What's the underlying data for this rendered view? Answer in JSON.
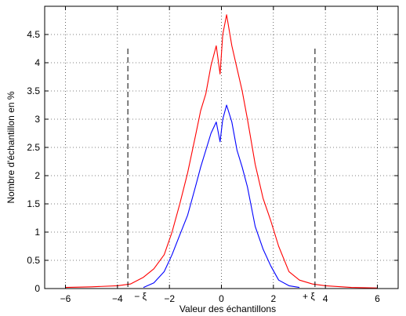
{
  "chart_data": {
    "type": "line",
    "title": "",
    "xlabel": "Valeur des échantillons",
    "ylabel": "Nombre d'échantillon en %",
    "xlim": [
      -6.8,
      6.8
    ],
    "ylim": [
      0,
      5
    ],
    "grid": true,
    "legend": "none",
    "xticks": [
      -6,
      -4,
      -2,
      0,
      2,
      4,
      6
    ],
    "yticks": [
      0,
      0.5,
      1,
      1.5,
      2,
      2.5,
      3,
      3.5,
      4,
      4.5
    ],
    "thresholds": [
      {
        "x": -3.6,
        "label": "− ξ",
        "y_top": 4.25
      },
      {
        "x": 3.6,
        "label": "+ ξ",
        "y_top": 4.25
      }
    ],
    "series": [
      {
        "color": "#ff0000",
        "x": [
          -6.0,
          -5.0,
          -4.0,
          -3.5,
          -3.0,
          -2.6,
          -2.2,
          -1.9,
          -1.6,
          -1.3,
          -1.0,
          -0.8,
          -0.6,
          -0.4,
          -0.2,
          -0.05,
          0.05,
          0.2,
          0.4,
          0.6,
          0.8,
          1.0,
          1.3,
          1.6,
          1.9,
          2.2,
          2.6,
          3.0,
          3.5,
          4.0,
          5.0,
          6.0
        ],
        "y": [
          0.02,
          0.03,
          0.05,
          0.08,
          0.2,
          0.35,
          0.6,
          1.0,
          1.5,
          2.05,
          2.7,
          3.15,
          3.45,
          3.95,
          4.3,
          3.8,
          4.5,
          4.85,
          4.3,
          3.9,
          3.5,
          3.0,
          2.2,
          1.6,
          1.2,
          0.75,
          0.3,
          0.15,
          0.08,
          0.05,
          0.02,
          0.01
        ],
        "visible_y": [
          0.02,
          0.03,
          0.05,
          0.08,
          0.2,
          0.35,
          0.6,
          1.0,
          1.5,
          2.05,
          2.7,
          3.15,
          3.45,
          3.95,
          4.3,
          3.8,
          4.5,
          4.85,
          4.3,
          3.9,
          3.5,
          3.0,
          2.2,
          1.6,
          1.2,
          0.75,
          0.3,
          0.15,
          0.08,
          0.05,
          0.02,
          0.01
        ]
      },
      {
        "color": "#0000ff",
        "x": [
          -3.0,
          -2.6,
          -2.2,
          -1.9,
          -1.6,
          -1.3,
          -1.0,
          -0.8,
          -0.6,
          -0.4,
          -0.2,
          -0.05,
          0.05,
          0.2,
          0.4,
          0.6,
          0.8,
          1.0,
          1.3,
          1.6,
          1.9,
          2.2,
          2.6,
          3.0
        ],
        "y": [
          0.02,
          0.1,
          0.3,
          0.6,
          0.95,
          1.3,
          1.8,
          2.15,
          2.45,
          2.75,
          2.95,
          2.6,
          3.0,
          3.25,
          2.95,
          2.45,
          2.15,
          1.8,
          1.1,
          0.7,
          0.4,
          0.15,
          0.05,
          0.02
        ]
      }
    ]
  }
}
